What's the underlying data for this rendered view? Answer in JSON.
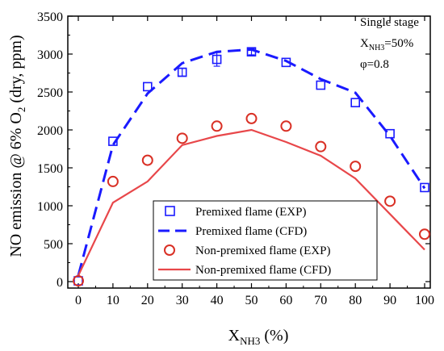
{
  "chart_data": {
    "type": "line",
    "title": "",
    "xlabel": {
      "main": "X",
      "sub": "NH3",
      "suffix": " (%)"
    },
    "ylabel": {
      "prefix": "NO emission @ 6% O",
      "sub": "2",
      "suffix": " (dry, ppm)"
    },
    "xlim": [
      0,
      100
    ],
    "ylim": [
      0,
      3500
    ],
    "xticks": [
      0,
      10,
      20,
      30,
      40,
      50,
      60,
      70,
      80,
      90,
      100
    ],
    "yticks": [
      0,
      500,
      1000,
      1500,
      2000,
      2500,
      3000,
      3500
    ],
    "grid": false,
    "legend_position": "bottom-center",
    "annotation": {
      "line1": "Single stage",
      "line2_main": "X",
      "line2_sub": "NH3",
      "line2_suffix": "=50%",
      "line3": "φ=0.8"
    },
    "series": [
      {
        "name": "Premixed flame (EXP)",
        "kind": "scatter",
        "marker": "square",
        "color": "#1a1aff",
        "x": [
          0,
          10,
          20,
          30,
          40,
          50,
          60,
          70,
          80,
          90,
          100
        ],
        "y": [
          10,
          1850,
          2570,
          2760,
          2930,
          3030,
          2890,
          2590,
          2360,
          1950,
          1240
        ],
        "yerr": [
          0,
          0,
          0,
          50,
          90,
          40,
          0,
          0,
          0,
          0,
          0
        ]
      },
      {
        "name": "Premixed flame (CFD)",
        "kind": "line",
        "dash": "dashed",
        "color": "#1a1aff",
        "x": [
          0,
          10,
          20,
          30,
          40,
          50,
          60,
          70,
          80,
          90,
          100
        ],
        "y": [
          80,
          1800,
          2480,
          2880,
          3030,
          3060,
          2910,
          2670,
          2490,
          1920,
          1230
        ]
      },
      {
        "name": "Non-premixed flame (EXP)",
        "kind": "scatter",
        "marker": "circle",
        "color": "#d93025",
        "x": [
          0,
          10,
          20,
          30,
          40,
          50,
          60,
          70,
          80,
          90,
          100
        ],
        "y": [
          10,
          1320,
          1600,
          1890,
          2050,
          2150,
          2050,
          1780,
          1520,
          1060,
          625
        ]
      },
      {
        "name": "Non-premixed flame (CFD)",
        "kind": "line",
        "dash": "solid",
        "color": "#e8474a",
        "x": [
          0,
          10,
          20,
          30,
          40,
          50,
          60,
          70,
          80,
          90,
          100
        ],
        "y": [
          80,
          1040,
          1320,
          1800,
          1920,
          2000,
          1840,
          1660,
          1360,
          890,
          420
        ]
      }
    ]
  }
}
